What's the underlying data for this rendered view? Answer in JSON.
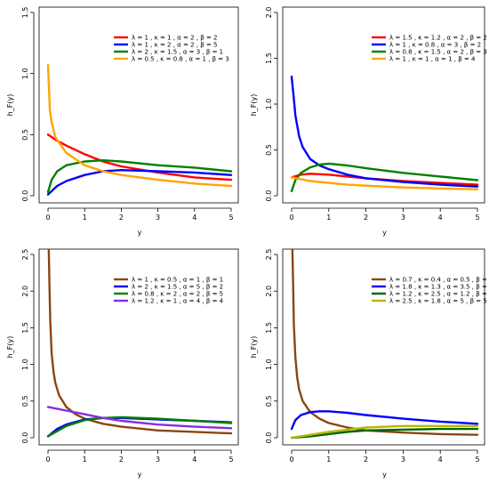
{
  "chart_data": [
    {
      "type": "line",
      "xlabel": "y",
      "ylabel": "h_F(y)",
      "xlim": [
        0,
        5
      ],
      "ylim": [
        0,
        1.5
      ],
      "xticks": [
        "0",
        "1",
        "2",
        "3",
        "4",
        "5"
      ],
      "yticks": [
        "0.0",
        "0.5",
        "1.0",
        "1.5"
      ],
      "legend_position": "top-right",
      "series": [
        {
          "name": "λ = 1 , κ = 1 , α = 2 , β = 2",
          "color": "#ff0000",
          "x": [
            0,
            0.25,
            0.5,
            1,
            1.5,
            2,
            3,
            4,
            5
          ],
          "y": [
            0.5,
            0.45,
            0.41,
            0.34,
            0.28,
            0.24,
            0.19,
            0.15,
            0.13
          ]
        },
        {
          "name": "λ = 1 , κ = 2 , α = 2 , β = 5",
          "color": "#0000ff",
          "x": [
            0,
            0.25,
            0.5,
            1,
            1.5,
            2,
            3,
            4,
            5
          ],
          "y": [
            0.01,
            0.08,
            0.12,
            0.17,
            0.2,
            0.21,
            0.2,
            0.19,
            0.17
          ]
        },
        {
          "name": "λ = 2 , κ = 1.5 , α = 3 , β = 1",
          "color": "#008000",
          "x": [
            0,
            0.1,
            0.25,
            0.5,
            1,
            1.5,
            2,
            3,
            4,
            5
          ],
          "y": [
            0.03,
            0.13,
            0.2,
            0.25,
            0.28,
            0.29,
            0.28,
            0.25,
            0.23,
            0.2
          ]
        },
        {
          "name": "λ = 0.5 , κ = 0.8 , α = 1 , β = 3",
          "color": "#ffa500",
          "x": [
            0,
            0.05,
            0.1,
            0.2,
            0.5,
            1,
            1.5,
            2,
            3,
            4,
            5
          ],
          "y": [
            1.07,
            0.7,
            0.6,
            0.48,
            0.35,
            0.25,
            0.2,
            0.17,
            0.13,
            0.1,
            0.08
          ]
        }
      ]
    },
    {
      "type": "line",
      "xlabel": "y",
      "ylabel": "h_F(y)",
      "xlim": [
        0,
        5
      ],
      "ylim": [
        0,
        2.0
      ],
      "xticks": [
        "0",
        "1",
        "2",
        "3",
        "4",
        "5"
      ],
      "yticks": [
        "0.0",
        "0.5",
        "1.0",
        "1.5",
        "2.0"
      ],
      "legend_position": "top-right",
      "series": [
        {
          "name": "λ = 1.5 , κ = 1.2 , α = 2 , β = 2",
          "color": "#ff0000",
          "x": [
            0,
            0.25,
            0.5,
            1,
            1.5,
            2,
            3,
            4,
            5
          ],
          "y": [
            0.2,
            0.23,
            0.24,
            0.23,
            0.21,
            0.19,
            0.16,
            0.14,
            0.12
          ]
        },
        {
          "name": "λ = 1 , κ = 0.8 , α = 3 , β = 2",
          "color": "#0000ff",
          "x": [
            0,
            0.05,
            0.1,
            0.2,
            0.3,
            0.5,
            0.75,
            1,
            1.5,
            2,
            3,
            4,
            5
          ],
          "y": [
            1.3,
            1.1,
            0.88,
            0.65,
            0.53,
            0.4,
            0.33,
            0.29,
            0.23,
            0.19,
            0.15,
            0.12,
            0.1
          ]
        },
        {
          "name": "λ = 0.8 , κ = 1.5 , α = 2 , β = 3",
          "color": "#008000",
          "x": [
            0,
            0.1,
            0.25,
            0.5,
            0.75,
            1,
            1.5,
            2,
            3,
            4,
            5
          ],
          "y": [
            0.05,
            0.17,
            0.25,
            0.31,
            0.34,
            0.35,
            0.33,
            0.3,
            0.25,
            0.21,
            0.17
          ]
        },
        {
          "name": "λ = 1 , κ = 1 , α = 1 , β = 4",
          "color": "#ffa500",
          "x": [
            0,
            0.5,
            1,
            1.5,
            2,
            3,
            4,
            5
          ],
          "y": [
            0.2,
            0.16,
            0.14,
            0.12,
            0.11,
            0.09,
            0.08,
            0.07
          ]
        }
      ]
    },
    {
      "type": "line",
      "xlabel": "y",
      "ylabel": "h_F(y)",
      "xlim": [
        0,
        5
      ],
      "ylim": [
        0,
        2.5
      ],
      "xticks": [
        "0",
        "1",
        "2",
        "3",
        "4",
        "5"
      ],
      "yticks": [
        "0.0",
        "0.5",
        "1.0",
        "1.5",
        "2.0",
        "2.5"
      ],
      "legend_position": "top-right",
      "series": [
        {
          "name": "λ = 1 , κ = 0.5 , α = 1 , β = 1",
          "color": "#8b4513",
          "x": [
            0.02,
            0.04,
            0.06,
            0.1,
            0.15,
            0.2,
            0.3,
            0.5,
            0.75,
            1,
            1.5,
            2,
            3,
            4,
            5
          ],
          "y": [
            2.6,
            2.1,
            1.6,
            1.15,
            0.9,
            0.75,
            0.58,
            0.42,
            0.32,
            0.26,
            0.19,
            0.15,
            0.1,
            0.08,
            0.06
          ]
        },
        {
          "name": "λ = 2 , κ = 1.5 , α = 5 , β = 2",
          "color": "#0000ff",
          "x": [
            0,
            0.25,
            0.5,
            1,
            1.5,
            2,
            3,
            4,
            5
          ],
          "y": [
            0.02,
            0.12,
            0.18,
            0.25,
            0.27,
            0.27,
            0.25,
            0.23,
            0.21
          ]
        },
        {
          "name": "λ = 0.8 , κ = 2 , α = 2 , β = 5",
          "color": "#008000",
          "x": [
            0,
            0.25,
            0.5,
            1,
            1.5,
            2,
            3,
            4,
            5
          ],
          "y": [
            0.02,
            0.09,
            0.16,
            0.24,
            0.27,
            0.28,
            0.26,
            0.23,
            0.2
          ]
        },
        {
          "name": "λ = 1.2 , κ = 1 , α = 4 , β = 4",
          "color": "#8a2be2",
          "x": [
            0,
            0.5,
            1,
            1.5,
            2,
            3,
            4,
            5
          ],
          "y": [
            0.42,
            0.37,
            0.32,
            0.27,
            0.23,
            0.18,
            0.15,
            0.13
          ]
        }
      ]
    },
    {
      "type": "line",
      "xlabel": "y",
      "ylabel": "h_F(y)",
      "xlim": [
        0,
        5
      ],
      "ylim": [
        0,
        2.5
      ],
      "xticks": [
        "0",
        "1",
        "2",
        "3",
        "4",
        "5"
      ],
      "yticks": [
        "0.0",
        "0.5",
        "1.0",
        "1.5",
        "2.0",
        "2.5"
      ],
      "legend_position": "top-right",
      "series": [
        {
          "name": "λ = 0.7 , κ = 0.4 , α = 0.5 , β = 1.5",
          "color": "#8b4513",
          "x": [
            0.02,
            0.04,
            0.06,
            0.1,
            0.15,
            0.2,
            0.3,
            0.5,
            0.75,
            1,
            1.5,
            2,
            3,
            4,
            5
          ],
          "y": [
            2.6,
            2.1,
            1.55,
            1.1,
            0.82,
            0.66,
            0.5,
            0.35,
            0.26,
            0.2,
            0.14,
            0.1,
            0.07,
            0.05,
            0.04
          ]
        },
        {
          "name": "λ = 1.8 , κ = 1.3 , α = 3.5 , β = 0.5",
          "color": "#0000ff",
          "x": [
            0,
            0.1,
            0.25,
            0.5,
            0.75,
            1,
            1.5,
            2,
            3,
            4,
            5
          ],
          "y": [
            0.12,
            0.24,
            0.31,
            0.35,
            0.36,
            0.36,
            0.34,
            0.31,
            0.26,
            0.22,
            0.19
          ]
        },
        {
          "name": "λ = 1.2 , κ = 2.5 , α = 1.2 , β = 4",
          "color": "#006400",
          "x": [
            0,
            0.5,
            1,
            1.5,
            2,
            3,
            4,
            5
          ],
          "y": [
            0.0,
            0.02,
            0.05,
            0.08,
            0.1,
            0.11,
            0.12,
            0.12
          ]
        },
        {
          "name": "λ = 2.5 , κ = 1.8 , α = 5 , β = 5",
          "color": "#b8b800",
          "x": [
            0,
            0.5,
            1,
            1.5,
            2,
            3,
            4,
            5
          ],
          "y": [
            0.0,
            0.04,
            0.08,
            0.11,
            0.14,
            0.16,
            0.16,
            0.16
          ]
        }
      ]
    }
  ]
}
